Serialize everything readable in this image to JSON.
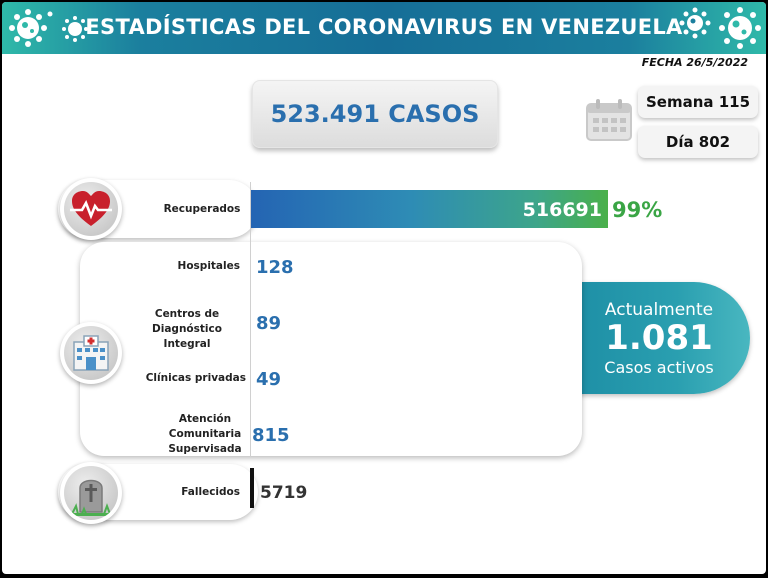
{
  "header": {
    "title": "ESTADÍSTICAS DEL CORONAVIRUS EN VENEZUELA"
  },
  "fecha": "FECHA 26/5/2022",
  "total": {
    "label": "523.491 CASOS"
  },
  "calendar": {
    "icon": "calendar-icon",
    "week": "Semana 115",
    "day": "Día 802"
  },
  "recuperados": {
    "label": "Recuperados",
    "value": "516691",
    "percent": "99%",
    "share": 0.99,
    "icon": "heart-icon"
  },
  "centers": {
    "icon": "hospital-icon",
    "items": [
      {
        "label": "Hospitales",
        "value": "128"
      },
      {
        "label": "Centros de Diagnóstico Integral",
        "value": "89"
      },
      {
        "label": "Clínicas privadas",
        "value": "49"
      },
      {
        "label": "Atención Comunitaria Supervisada",
        "value": "815"
      }
    ]
  },
  "active": {
    "top": "Actualmente",
    "number": "1.081",
    "bottom": "Casos activos"
  },
  "fallecidos": {
    "label": "Fallecidos",
    "value": "5719",
    "icon": "tombstone-icon"
  },
  "colors": {
    "accent_blue": "#2a6fae",
    "recovered_green": "#3aa545",
    "banner_teal": "#1b7f9e"
  }
}
